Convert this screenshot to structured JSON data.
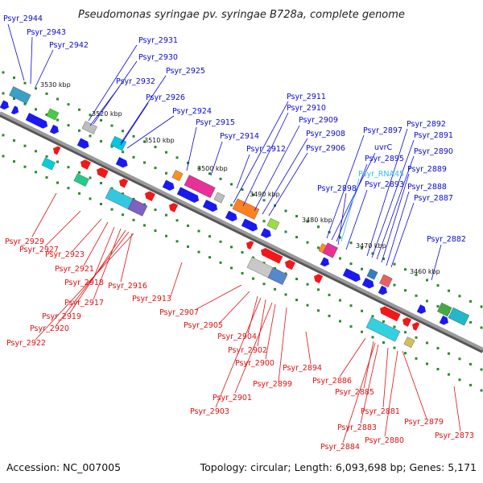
{
  "title": "Pseudomonas syringae pv. syringae B728a, complete genome",
  "accession_text": "Accession: NC_007005",
  "summary_text": "Topology: circular; Length: 6,093,698 bp; Genes: 5,171",
  "colors": {
    "forward_label": "#0a0ad0",
    "reverse_label": "#e01010",
    "rna_label": "#33bbee",
    "backbone": "#7a7a7a",
    "forward_feature": "#1a1af0",
    "reverse_feature": "#f01818",
    "tick": "#2a8a2a"
  },
  "scale_labels": [
    "3530 kbp",
    "3520 kbp",
    "3510 kbp",
    "3500 kbp",
    "3490 kbp",
    "3480 kbp",
    "3470 kbp",
    "3460 kbp"
  ],
  "forward_labels": [
    "Psyr_2944",
    "Psyr_2943",
    "Psyr_2942",
    "Psyr_2931",
    "Psyr_2930",
    "Psyr_2925",
    "Psyr_2932",
    "Psyr_2926",
    "Psyr_2924",
    "Psyr_2915",
    "Psyr_2914",
    "Psyr_2912",
    "Psyr_2911",
    "Psyr_2910",
    "Psyr_2909",
    "Psyr_2908",
    "Psyr_2906",
    "Psyr_2897",
    "uvrC",
    "Psyr_2895",
    "Psyr_2898",
    "Psyr_2893",
    "Psyr_2892",
    "Psyr_2891",
    "Psyr_2890",
    "Psyr_2889",
    "Psyr_2888",
    "Psyr_2887",
    "Psyr_2882"
  ],
  "rna_labels": [
    "Psyr_RNA45"
  ],
  "reverse_labels": [
    "Psyr_2929",
    "Psyr_2927",
    "Psyr_2923",
    "Psyr_2921",
    "Psyr_2918",
    "Psyr_2916",
    "Psyr_2917",
    "Psyr_2919",
    "Psyr_2920",
    "Psyr_2922",
    "Psyr_2913",
    "Psyr_2907",
    "Psyr_2905",
    "Psyr_2904",
    "Psyr_2902",
    "Psyr_2900",
    "Psyr_2899",
    "Psyr_2901",
    "Psyr_2903",
    "Psyr_2894",
    "Psyr_2886",
    "Psyr_2885",
    "Psyr_2881",
    "Psyr_2883",
    "Psyr_2884",
    "Psyr_2880",
    "Psyr_2879",
    "Psyr_2873"
  ]
}
